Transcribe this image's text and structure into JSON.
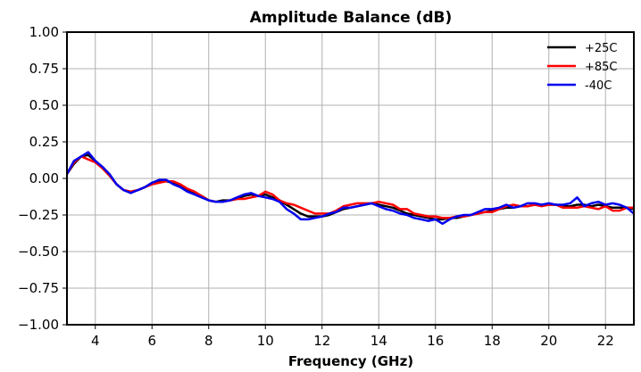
{
  "chart_data": {
    "type": "line",
    "title": "Amplitude Balance (dB)",
    "xlabel": "Frequency (GHz)",
    "ylabel": "",
    "xlim": [
      3,
      23
    ],
    "ylim": [
      -1.0,
      1.0
    ],
    "x_ticks": [
      4,
      6,
      8,
      10,
      12,
      14,
      16,
      18,
      20,
      22
    ],
    "y_ticks": [
      "1.00",
      "0.75",
      "0.50",
      "0.25",
      "0.00",
      "−0.25",
      "−0.50",
      "−0.75",
      "−1.00"
    ],
    "y_tick_values": [
      1.0,
      0.75,
      0.5,
      0.25,
      0.0,
      -0.25,
      -0.5,
      -0.75,
      -1.0
    ],
    "grid": true,
    "legend_position": "top-right",
    "x": [
      3.0,
      3.25,
      3.5,
      3.75,
      4.0,
      4.25,
      4.5,
      4.75,
      5.0,
      5.25,
      5.5,
      5.75,
      6.0,
      6.25,
      6.5,
      6.75,
      7.0,
      7.25,
      7.5,
      7.75,
      8.0,
      8.25,
      8.5,
      8.75,
      9.0,
      9.25,
      9.5,
      9.75,
      10.0,
      10.25,
      10.5,
      10.75,
      11.0,
      11.25,
      11.5,
      11.75,
      12.0,
      12.25,
      12.5,
      12.75,
      13.0,
      13.25,
      13.5,
      13.75,
      14.0,
      14.25,
      14.5,
      14.75,
      15.0,
      15.25,
      15.5,
      15.75,
      16.0,
      16.25,
      16.5,
      16.75,
      17.0,
      17.25,
      17.5,
      17.75,
      18.0,
      18.25,
      18.5,
      18.75,
      19.0,
      19.25,
      19.5,
      19.75,
      20.0,
      20.25,
      20.5,
      20.75,
      21.0,
      21.25,
      21.5,
      21.75,
      22.0,
      22.25,
      22.5,
      22.75,
      23.0
    ],
    "series": [
      {
        "name": "+25C",
        "color": "#000000",
        "values": [
          0.03,
          0.1,
          0.15,
          0.16,
          0.12,
          0.07,
          0.02,
          -0.04,
          -0.08,
          -0.09,
          -0.08,
          -0.06,
          -0.03,
          -0.02,
          -0.02,
          -0.03,
          -0.05,
          -0.08,
          -0.1,
          -0.12,
          -0.15,
          -0.16,
          -0.15,
          -0.15,
          -0.14,
          -0.12,
          -0.11,
          -0.12,
          -0.11,
          -0.13,
          -0.15,
          -0.18,
          -0.21,
          -0.24,
          -0.26,
          -0.26,
          -0.26,
          -0.25,
          -0.23,
          -0.21,
          -0.2,
          -0.19,
          -0.18,
          -0.17,
          -0.18,
          -0.19,
          -0.2,
          -0.22,
          -0.24,
          -0.25,
          -0.26,
          -0.27,
          -0.28,
          -0.28,
          -0.27,
          -0.27,
          -0.26,
          -0.25,
          -0.24,
          -0.23,
          -0.22,
          -0.21,
          -0.2,
          -0.2,
          -0.19,
          -0.19,
          -0.18,
          -0.18,
          -0.18,
          -0.18,
          -0.19,
          -0.19,
          -0.18,
          -0.18,
          -0.19,
          -0.18,
          -0.19,
          -0.2,
          -0.2,
          -0.2,
          -0.21
        ]
      },
      {
        "name": "+85C",
        "color": "#ff0000",
        "values": [
          0.03,
          0.11,
          0.15,
          0.13,
          0.11,
          0.07,
          0.02,
          -0.04,
          -0.08,
          -0.09,
          -0.08,
          -0.06,
          -0.04,
          -0.03,
          -0.02,
          -0.02,
          -0.04,
          -0.07,
          -0.09,
          -0.12,
          -0.15,
          -0.16,
          -0.16,
          -0.15,
          -0.14,
          -0.14,
          -0.13,
          -0.12,
          -0.09,
          -0.11,
          -0.15,
          -0.17,
          -0.18,
          -0.2,
          -0.22,
          -0.24,
          -0.24,
          -0.24,
          -0.22,
          -0.19,
          -0.18,
          -0.17,
          -0.17,
          -0.17,
          -0.16,
          -0.17,
          -0.18,
          -0.21,
          -0.21,
          -0.24,
          -0.25,
          -0.26,
          -0.26,
          -0.27,
          -0.27,
          -0.26,
          -0.26,
          -0.25,
          -0.24,
          -0.23,
          -0.23,
          -0.21,
          -0.19,
          -0.18,
          -0.19,
          -0.19,
          -0.18,
          -0.19,
          -0.18,
          -0.18,
          -0.2,
          -0.2,
          -0.2,
          -0.19,
          -0.2,
          -0.21,
          -0.19,
          -0.22,
          -0.22,
          -0.2,
          -0.2
        ]
      },
      {
        "name": "-40C",
        "color": "#0000ee",
        "values": [
          0.03,
          0.12,
          0.15,
          0.18,
          0.12,
          0.08,
          0.03,
          -0.04,
          -0.08,
          -0.1,
          -0.08,
          -0.06,
          -0.03,
          -0.01,
          -0.01,
          -0.04,
          -0.06,
          -0.09,
          -0.11,
          -0.13,
          -0.15,
          -0.16,
          -0.16,
          -0.15,
          -0.13,
          -0.11,
          -0.1,
          -0.12,
          -0.13,
          -0.14,
          -0.16,
          -0.21,
          -0.24,
          -0.28,
          -0.28,
          -0.27,
          -0.26,
          -0.24,
          -0.23,
          -0.2,
          -0.2,
          -0.19,
          -0.18,
          -0.17,
          -0.19,
          -0.21,
          -0.22,
          -0.24,
          -0.25,
          -0.27,
          -0.28,
          -0.29,
          -0.28,
          -0.31,
          -0.28,
          -0.26,
          -0.25,
          -0.25,
          -0.23,
          -0.21,
          -0.21,
          -0.2,
          -0.18,
          -0.2,
          -0.19,
          -0.17,
          -0.17,
          -0.18,
          -0.17,
          -0.18,
          -0.18,
          -0.17,
          -0.13,
          -0.19,
          -0.17,
          -0.16,
          -0.18,
          -0.17,
          -0.18,
          -0.2,
          -0.24
        ]
      }
    ]
  }
}
